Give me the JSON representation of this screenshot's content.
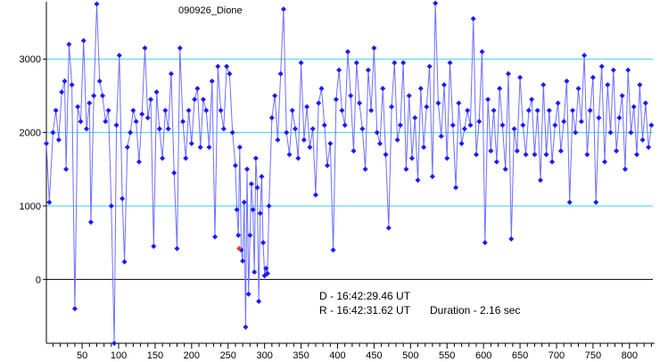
{
  "chart_data": {
    "type": "scatter",
    "title": "090926_Dione",
    "xlabel": "",
    "ylabel": "",
    "xlim": [
      1,
      832
    ],
    "ylim": [
      -870,
      3780
    ],
    "x_ticks": [
      50,
      100,
      150,
      200,
      250,
      300,
      350,
      400,
      450,
      500,
      550,
      600,
      650,
      700,
      750,
      800
    ],
    "y_ticks": [
      0,
      1000,
      2000,
      3000
    ],
    "gridlines_y": [
      1000,
      2000,
      3000
    ],
    "grid": "horizontal at 1000, 2000, 3000",
    "legend": "none",
    "colors": {
      "points": "#1a1aff",
      "line": "#6e6eff",
      "gridline": "#33d6e6",
      "highlight": "#ff3333",
      "axis": "#000000"
    },
    "series": [
      {
        "values": [
          [
            1,
            1850
          ],
          [
            5,
            1050
          ],
          [
            10,
            2000
          ],
          [
            14,
            2300
          ],
          [
            18,
            1900
          ],
          [
            22,
            2550
          ],
          [
            26,
            2700
          ],
          [
            28,
            1500
          ],
          [
            32,
            3200
          ],
          [
            36,
            2650
          ],
          [
            40,
            -400
          ],
          [
            44,
            2350
          ],
          [
            48,
            2150
          ],
          [
            52,
            3250
          ],
          [
            56,
            2050
          ],
          [
            60,
            2400
          ],
          [
            62,
            780
          ],
          [
            66,
            2500
          ],
          [
            70,
            3750
          ],
          [
            74,
            2700
          ],
          [
            78,
            2500
          ],
          [
            82,
            2150
          ],
          [
            86,
            2300
          ],
          [
            90,
            1000
          ],
          [
            94,
            -870
          ],
          [
            97,
            2100
          ],
          [
            101,
            3050
          ],
          [
            105,
            1100
          ],
          [
            108,
            240
          ],
          [
            112,
            1800
          ],
          [
            116,
            2000
          ],
          [
            120,
            2300
          ],
          [
            124,
            2150
          ],
          [
            128,
            1600
          ],
          [
            132,
            2250
          ],
          [
            136,
            3150
          ],
          [
            140,
            2200
          ],
          [
            144,
            2450
          ],
          [
            148,
            450
          ],
          [
            152,
            2550
          ],
          [
            156,
            2050
          ],
          [
            160,
            1650
          ],
          [
            164,
            2300
          ],
          [
            168,
            2050
          ],
          [
            172,
            2800
          ],
          [
            176,
            1450
          ],
          [
            180,
            420
          ],
          [
            184,
            3150
          ],
          [
            188,
            2150
          ],
          [
            192,
            1650
          ],
          [
            196,
            2300
          ],
          [
            200,
            1850
          ],
          [
            204,
            2450
          ],
          [
            208,
            2600
          ],
          [
            212,
            1800
          ],
          [
            216,
            2450
          ],
          [
            220,
            2300
          ],
          [
            224,
            1800
          ],
          [
            228,
            2700
          ],
          [
            232,
            580
          ],
          [
            236,
            2900
          ],
          [
            240,
            2300
          ],
          [
            244,
            2050
          ],
          [
            248,
            2900
          ],
          [
            252,
            2800
          ],
          [
            256,
            2000
          ],
          [
            260,
            1550
          ],
          [
            262,
            950
          ],
          [
            264,
            600
          ],
          [
            266,
            1800
          ],
          [
            268,
            400
          ],
          [
            270,
            250
          ],
          [
            272,
            1050
          ],
          [
            274,
            -650
          ],
          [
            276,
            1500
          ],
          [
            278,
            -200
          ],
          [
            280,
            600
          ],
          [
            282,
            1300
          ],
          [
            284,
            950
          ],
          [
            286,
            100
          ],
          [
            288,
            1650
          ],
          [
            290,
            1250
          ],
          [
            292,
            -300
          ],
          [
            294,
            900
          ],
          [
            296,
            1400
          ],
          [
            298,
            500
          ],
          [
            300,
            50
          ],
          [
            302,
            150
          ],
          [
            304,
            80
          ],
          [
            306,
            1000
          ],
          [
            310,
            2200
          ],
          [
            314,
            2500
          ],
          [
            318,
            1900
          ],
          [
            322,
            2800
          ],
          [
            326,
            3680
          ],
          [
            330,
            2000
          ],
          [
            334,
            1700
          ],
          [
            338,
            2300
          ],
          [
            342,
            2050
          ],
          [
            346,
            1650
          ],
          [
            350,
            2950
          ],
          [
            354,
            1900
          ],
          [
            358,
            2350
          ],
          [
            362,
            1800
          ],
          [
            366,
            2050
          ],
          [
            370,
            1150
          ],
          [
            374,
            2400
          ],
          [
            378,
            2600
          ],
          [
            382,
            2100
          ],
          [
            386,
            1550
          ],
          [
            390,
            1850
          ],
          [
            394,
            400
          ],
          [
            398,
            2450
          ],
          [
            402,
            2850
          ],
          [
            406,
            2300
          ],
          [
            410,
            2100
          ],
          [
            414,
            3100
          ],
          [
            418,
            2500
          ],
          [
            422,
            1750
          ],
          [
            426,
            2950
          ],
          [
            430,
            2400
          ],
          [
            434,
            2050
          ],
          [
            438,
            1500
          ],
          [
            442,
            2850
          ],
          [
            446,
            2300
          ],
          [
            450,
            3150
          ],
          [
            454,
            2000
          ],
          [
            458,
            1850
          ],
          [
            462,
            2600
          ],
          [
            466,
            1700
          ],
          [
            470,
            700
          ],
          [
            474,
            2350
          ],
          [
            478,
            2950
          ],
          [
            482,
            1900
          ],
          [
            486,
            2100
          ],
          [
            490,
            2950
          ],
          [
            494,
            1500
          ],
          [
            498,
            2500
          ],
          [
            502,
            1650
          ],
          [
            506,
            2200
          ],
          [
            510,
            1350
          ],
          [
            514,
            2600
          ],
          [
            518,
            1800
          ],
          [
            522,
            2350
          ],
          [
            526,
            2900
          ],
          [
            530,
            1400
          ],
          [
            534,
            3760
          ],
          [
            538,
            2400
          ],
          [
            542,
            1950
          ],
          [
            546,
            2650
          ],
          [
            550,
            1650
          ],
          [
            554,
            2950
          ],
          [
            558,
            2100
          ],
          [
            562,
            1250
          ],
          [
            566,
            2400
          ],
          [
            570,
            1850
          ],
          [
            574,
            2050
          ],
          [
            578,
            2300
          ],
          [
            582,
            2100
          ],
          [
            586,
            3550
          ],
          [
            590,
            1700
          ],
          [
            594,
            2150
          ],
          [
            598,
            3100
          ],
          [
            602,
            500
          ],
          [
            606,
            2450
          ],
          [
            610,
            1750
          ],
          [
            614,
            2300
          ],
          [
            618,
            1600
          ],
          [
            622,
            2600
          ],
          [
            626,
            2100
          ],
          [
            630,
            1500
          ],
          [
            634,
            2800
          ],
          [
            638,
            550
          ],
          [
            642,
            2050
          ],
          [
            646,
            1750
          ],
          [
            650,
            2750
          ],
          [
            654,
            2100
          ],
          [
            658,
            1700
          ],
          [
            662,
            2300
          ],
          [
            666,
            2450
          ],
          [
            670,
            1700
          ],
          [
            674,
            2300
          ],
          [
            678,
            1350
          ],
          [
            682,
            2650
          ],
          [
            686,
            1700
          ],
          [
            690,
            2300
          ],
          [
            694,
            1600
          ],
          [
            698,
            2100
          ],
          [
            702,
            2400
          ],
          [
            706,
            1750
          ],
          [
            710,
            2150
          ],
          [
            714,
            2700
          ],
          [
            718,
            1050
          ],
          [
            722,
            2300
          ],
          [
            726,
            2000
          ],
          [
            730,
            2600
          ],
          [
            734,
            2150
          ],
          [
            738,
            3050
          ],
          [
            742,
            1700
          ],
          [
            746,
            2300
          ],
          [
            750,
            2750
          ],
          [
            754,
            1050
          ],
          [
            758,
            2200
          ],
          [
            762,
            2900
          ],
          [
            766,
            1600
          ],
          [
            770,
            2650
          ],
          [
            774,
            2000
          ],
          [
            778,
            2850
          ],
          [
            782,
            1750
          ],
          [
            786,
            2200
          ],
          [
            790,
            2500
          ],
          [
            794,
            1500
          ],
          [
            798,
            2850
          ],
          [
            802,
            2000
          ],
          [
            806,
            2350
          ],
          [
            810,
            1700
          ],
          [
            814,
            2650
          ],
          [
            818,
            1900
          ],
          [
            822,
            2400
          ],
          [
            826,
            1800
          ],
          [
            830,
            2100
          ]
        ],
        "highlighted_points": [
          [
            265,
            420
          ]
        ]
      }
    ],
    "annotations": {
      "disappearance": "D - 16:42:29.46 UT",
      "reappearance": "R - 16:42:31.62 UT",
      "duration": "Duration - 2.16 sec"
    }
  }
}
